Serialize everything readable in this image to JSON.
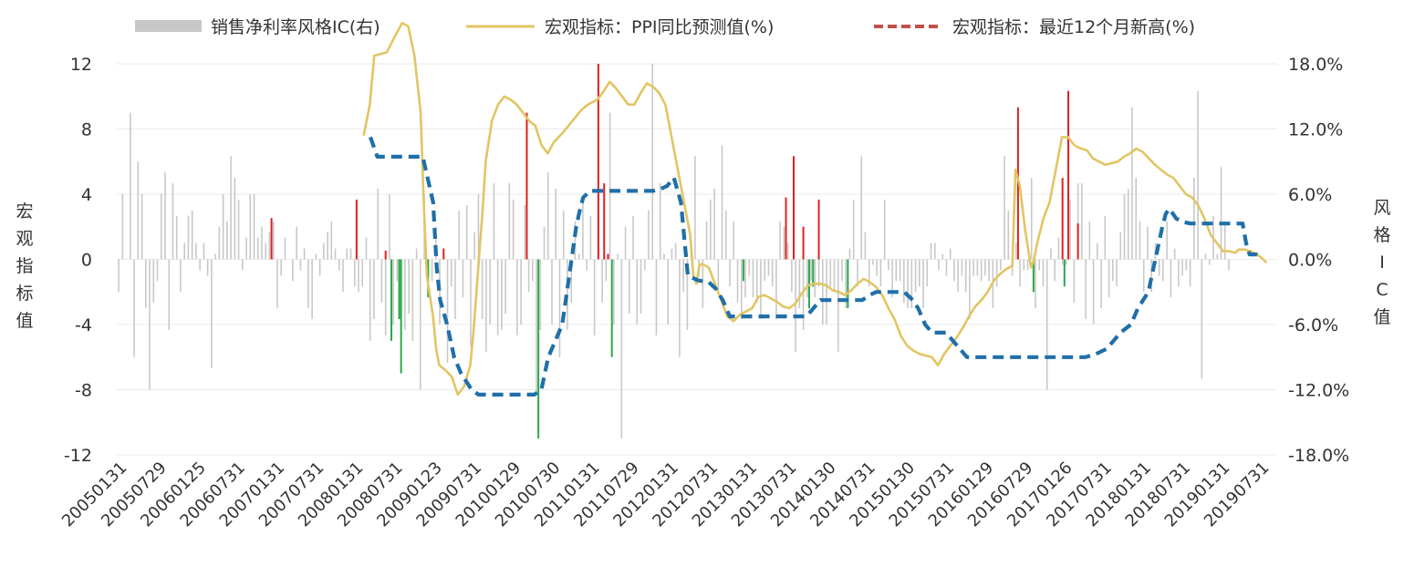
{
  "chart_data": {
    "type": "bar+line",
    "legend": {
      "placement": "top",
      "items": [
        {
          "label": "销售净利率风格IC(右)",
          "marker": "bar",
          "color": "#c8c8c8"
        },
        {
          "label": "宏观指标：PPI同比预测值(%)",
          "marker": "line",
          "color": "#e2c563"
        },
        {
          "label": "宏观指标：最近12个月新高(%)",
          "marker": "dash",
          "color": "#c0504d"
        }
      ]
    },
    "y_left": {
      "label": "宏观指标值",
      "min": -12,
      "max": 12,
      "ticks": [
        "12",
        "8",
        "4",
        "0",
        "-4",
        "-8",
        "-12"
      ]
    },
    "y_right": {
      "label": "风格IC值",
      "min": -18,
      "max": 18,
      "ticks": [
        "18.0%",
        "12.0%",
        "6.0%",
        "0.0%",
        "-6.0%",
        "-12.0%",
        "-18.0%"
      ]
    },
    "x_ticks": [
      "20050131",
      "20050729",
      "20060125",
      "20060731",
      "20070131",
      "20070731",
      "20080131",
      "20080731",
      "20090123",
      "20090731",
      "20100129",
      "20100730",
      "20110131",
      "20110729",
      "20120131",
      "20120731",
      "20130131",
      "20130731",
      "20140130",
      "20140731",
      "20150130",
      "20150731",
      "20160129",
      "20160729",
      "20170126",
      "20170731",
      "20180131",
      "20180731",
      "20190131",
      "20190731"
    ],
    "colors": {
      "bar_neutral": "#c8c8c8",
      "bar_positive": "#e02020",
      "bar_negative": "#2aa84a",
      "ppi_line": "#e2c563",
      "high_line": "#1f6fa8",
      "grid": "#ebebeb",
      "axis_text": "#333333"
    },
    "ic_values_pct": [
      -3.0,
      6.0,
      0,
      13.5,
      -9.0,
      9.0,
      6.0,
      -4.5,
      -12.0,
      -4.0,
      -2.0,
      6.0,
      8.0,
      -6.5,
      7.0,
      4.0,
      -3.0,
      1.5,
      4.0,
      4.5,
      1.5,
      -1.0,
      1.5,
      -1.5,
      -10.0,
      0.5,
      3.0,
      6.0,
      3.5,
      9.5,
      7.5,
      5.5,
      -1.0,
      2.0,
      6.0,
      6.0,
      2.0,
      3.0,
      1.5,
      2.5,
      3.5,
      -4.5,
      -1.5,
      2.0,
      0,
      -2.0,
      3.0,
      -1.0,
      1.0,
      -4.5,
      -5.5,
      0.5,
      -1.5,
      1.5,
      2.5,
      3.5,
      1.0,
      -1.0,
      -3.0,
      1.0,
      1.0,
      -2.5,
      -3.0,
      -2.5,
      2.0,
      -7.5,
      -5.5,
      6.5,
      -4.0,
      -7.0,
      6.0,
      -6.0,
      -2.0,
      -5.5,
      -6.5,
      -5.0,
      -7.5,
      1.0,
      -12.0,
      6.0,
      -0.5,
      -2.0,
      3.0,
      -6.0,
      0.5,
      -9.5,
      -2.5,
      -5.5,
      4.5,
      -3.5,
      5.0,
      -8.0,
      2.5,
      6.0,
      -5.5,
      -8.5,
      -6.0,
      7.0,
      -7.0,
      -6.5,
      -5.0,
      7.0,
      5.5,
      -7.0,
      -6.0,
      5.0,
      -3.0,
      -2.0,
      -12.5,
      -6.5,
      3.0,
      8.0,
      -6.0,
      6.5,
      -9.0,
      4.5,
      -6.5,
      -4.0,
      3.5,
      0.5,
      5.5,
      -1.0,
      4.0,
      -7.0,
      4.5,
      -4.0,
      -2.0,
      13.5,
      -6.0,
      0.5,
      -16.5,
      3.0,
      -5.0,
      4.0,
      -6.0,
      -5.0,
      -1.0,
      4.5,
      18.0,
      -7.0,
      7.0,
      0.5,
      -6.0,
      1.0,
      1.5,
      -9.0,
      -3.0,
      -6.5,
      1.5,
      9.5,
      -1.5,
      -4.5,
      3.5,
      5.5,
      6.5,
      -3.0,
      10.5,
      4.5,
      -2.5,
      3.5,
      -4.0,
      -5.5,
      -3.5,
      -1.5,
      -3.5,
      -4.0,
      -5.5,
      -2.0,
      -1.5,
      -2.5,
      -5.5,
      3.5,
      3.0,
      1.5,
      -3.0,
      -8.5,
      -4.5,
      -6.5,
      -3.5,
      -2.0,
      -3.5,
      -2.5,
      -6.0,
      -6.0,
      -2.5,
      -3.0,
      -8.5,
      -2.0,
      -4.5,
      1.0,
      5.5,
      -2.5,
      9.5,
      2.5,
      -2.5,
      -0.5,
      -1.5,
      -2.5,
      5.5,
      -1.0,
      -3.5,
      -2.0,
      -2.0,
      -4.0,
      -4.5,
      -4.5,
      -3.0,
      -2.5,
      -4.5,
      -2.5,
      1.5,
      1.5,
      -1.0,
      0.5,
      -1.5,
      1.0,
      -2.0,
      -3.0,
      -1.5,
      -3.0,
      -5.5,
      -1.5,
      -1.5,
      -2.0,
      -1.5,
      -2.0,
      -4.5,
      -2.5,
      -1.0,
      9.5,
      4.5,
      -1.5,
      1.5,
      -2.5,
      -1.0,
      -1.0,
      7.5,
      -4.5,
      -1.0,
      -2.5,
      -12.0,
      1.0,
      -2.0,
      2.0,
      -0.5,
      -0.5,
      5.5,
      -4.0,
      7.0,
      7.0,
      -5.5,
      3.5,
      -6.0,
      1.5,
      -4.5,
      4.0,
      -3.5,
      -2.0,
      -2.5,
      2.5,
      6.0,
      6.5,
      14.0,
      7.5,
      3.5,
      -3.0,
      3.0,
      -3.0,
      1.5,
      -1.5,
      -2.0,
      3.5,
      -3.5,
      1.0,
      -2.5,
      -1.5,
      -1.0,
      -2.5,
      7.5,
      15.5,
      -11.0,
      0.5,
      -0.5,
      4.0,
      0.5,
      8.5,
      3.5,
      -1.0
    ],
    "ppi_series": [
      [
        8.8,
        7.6
      ],
      [
        9.8,
        9.5
      ],
      [
        10.5,
        12.5
      ],
      [
        11.5,
        12.6
      ],
      [
        12.5,
        12.7
      ],
      [
        14.0,
        13.8
      ],
      [
        15.0,
        14.5
      ],
      [
        16.0,
        14.3
      ],
      [
        17.0,
        12.5
      ],
      [
        18.0,
        9.0
      ],
      [
        18.5,
        3.5
      ],
      [
        19.0,
        -1.0
      ],
      [
        20.0,
        -3.5
      ],
      [
        20.5,
        -5.5
      ],
      [
        21.0,
        -6.5
      ],
      [
        22.0,
        -6.8
      ],
      [
        23.0,
        -7.2
      ],
      [
        24.0,
        -8.3
      ],
      [
        25.0,
        -7.8
      ],
      [
        26.0,
        -6.5
      ],
      [
        26.5,
        -4.5
      ],
      [
        27.0,
        -2.0
      ],
      [
        27.5,
        0.5
      ],
      [
        28.0,
        3.0
      ],
      [
        28.5,
        6.0
      ],
      [
        29.5,
        8.5
      ],
      [
        30.5,
        9.5
      ],
      [
        31.5,
        10.0
      ],
      [
        32.5,
        9.8
      ],
      [
        33.5,
        9.5
      ],
      [
        34.5,
        9.0
      ],
      [
        35.5,
        8.5
      ],
      [
        36.5,
        8.2
      ],
      [
        37.5,
        7.0
      ],
      [
        38.5,
        6.5
      ],
      [
        39.5,
        7.2
      ],
      [
        41.0,
        7.8
      ],
      [
        42.5,
        8.5
      ],
      [
        44.0,
        9.2
      ],
      [
        45.0,
        9.5
      ],
      [
        46.5,
        9.8
      ],
      [
        47.5,
        10.3
      ],
      [
        48.5,
        10.9
      ],
      [
        49.5,
        10.5
      ],
      [
        50.5,
        10.0
      ],
      [
        51.5,
        9.5
      ],
      [
        52.5,
        9.5
      ],
      [
        53.5,
        10.2
      ],
      [
        54.5,
        10.8
      ],
      [
        55.5,
        10.6
      ],
      [
        56.5,
        10.2
      ],
      [
        57.5,
        9.5
      ],
      [
        58.5,
        7.5
      ],
      [
        59.5,
        5.5
      ],
      [
        60.5,
        3.5
      ],
      [
        61.5,
        1.5
      ],
      [
        62.0,
        -1.0
      ],
      [
        62.5,
        -1.5
      ],
      [
        63.0,
        -0.3
      ],
      [
        63.5,
        -0.3
      ],
      [
        64.5,
        -0.5
      ],
      [
        65.5,
        -1.5
      ],
      [
        66.5,
        -2.5
      ],
      [
        67.5,
        -3.5
      ],
      [
        68.5,
        -3.8
      ],
      [
        69.5,
        -3.4
      ],
      [
        70.5,
        -3.2
      ],
      [
        71.5,
        -3.0
      ],
      [
        72.5,
        -2.3
      ],
      [
        73.5,
        -2.2
      ],
      [
        74.5,
        -2.4
      ],
      [
        75.5,
        -2.6
      ],
      [
        76.5,
        -2.9
      ],
      [
        77.5,
        -3.0
      ],
      [
        78.5,
        -2.7
      ],
      [
        79.5,
        -2.1
      ],
      [
        80.5,
        -1.6
      ],
      [
        81.5,
        -1.5
      ],
      [
        82.5,
        -1.5
      ],
      [
        83.5,
        -1.6
      ],
      [
        84.5,
        -1.9
      ],
      [
        85.5,
        -2.0
      ],
      [
        86.5,
        -2.2
      ],
      [
        87.5,
        -1.9
      ],
      [
        88.5,
        -1.5
      ],
      [
        89.5,
        -1.2
      ],
      [
        90.5,
        -1.4
      ],
      [
        91.5,
        -1.7
      ],
      [
        92.5,
        -2.2
      ],
      [
        93.5,
        -3.0
      ],
      [
        94.5,
        -3.7
      ],
      [
        95.5,
        -4.7
      ],
      [
        96.5,
        -5.3
      ],
      [
        97.5,
        -5.6
      ],
      [
        98.5,
        -5.8
      ],
      [
        99.5,
        -5.9
      ],
      [
        100.5,
        -6.0
      ],
      [
        101.5,
        -6.5
      ],
      [
        102.5,
        -5.8
      ],
      [
        103.5,
        -5.3
      ],
      [
        104.5,
        -4.8
      ],
      [
        105.5,
        -4.2
      ],
      [
        106.5,
        -3.5
      ],
      [
        107.5,
        -2.9
      ],
      [
        108.5,
        -2.5
      ],
      [
        109.5,
        -2.0
      ],
      [
        110.5,
        -1.3
      ],
      [
        111.5,
        -0.9
      ],
      [
        112.5,
        -0.6
      ],
      [
        113.5,
        -0.4
      ],
      [
        114.0,
        5.5
      ],
      [
        114.7,
        4.5
      ],
      [
        115.5,
        2.0
      ],
      [
        116.5,
        -0.5
      ],
      [
        117.0,
        0.0
      ],
      [
        117.5,
        1.0
      ],
      [
        118.5,
        2.5
      ],
      [
        119.5,
        3.5
      ],
      [
        120.5,
        5.5
      ],
      [
        121.5,
        7.5
      ],
      [
        122.5,
        7.5
      ],
      [
        123.5,
        7.0
      ],
      [
        124.5,
        6.8
      ],
      [
        125.5,
        6.7
      ],
      [
        126.5,
        6.2
      ],
      [
        127.5,
        6.0
      ],
      [
        128.5,
        5.8
      ],
      [
        129.5,
        5.9
      ],
      [
        130.5,
        6.0
      ],
      [
        131.5,
        6.3
      ],
      [
        132.5,
        6.5
      ],
      [
        133.5,
        6.8
      ],
      [
        134.5,
        6.6
      ],
      [
        135.5,
        6.2
      ],
      [
        136.5,
        5.8
      ],
      [
        137.5,
        5.5
      ],
      [
        138.5,
        5.2
      ],
      [
        139.5,
        5.0
      ],
      [
        140.5,
        4.5
      ],
      [
        141.5,
        4.0
      ],
      [
        142.5,
        3.8
      ],
      [
        143.5,
        3.3
      ],
      [
        144.5,
        2.5
      ],
      [
        145.5,
        1.5
      ],
      [
        146.5,
        1.0
      ],
      [
        147.5,
        0.5
      ],
      [
        148.5,
        0.5
      ],
      [
        149.5,
        0.4
      ],
      [
        150.0,
        0.6
      ],
      [
        151.0,
        0.6
      ],
      [
        152.0,
        0.5
      ],
      [
        153.0,
        0.3
      ],
      [
        154.0,
        0.0
      ],
      [
        154.5,
        -0.2
      ]
    ],
    "high_series": [
      [
        9.5,
        7.5
      ],
      [
        10.5,
        6.3
      ],
      [
        12.0,
        6.3
      ],
      [
        17.0,
        6.3
      ],
      [
        18.5,
        3.5
      ],
      [
        19.0,
        -0.5
      ],
      [
        19.5,
        -2.5
      ],
      [
        20.5,
        -4.0
      ],
      [
        21.5,
        -6.0
      ],
      [
        22.5,
        -7.0
      ],
      [
        24.0,
        -8.0
      ],
      [
        25.0,
        -8.3
      ],
      [
        28.0,
        -8.3
      ],
      [
        33.0,
        -8.3
      ],
      [
        34.0,
        -8.0
      ],
      [
        35.0,
        -6.0
      ],
      [
        36.0,
        -5.0
      ],
      [
        37.0,
        -4.0
      ],
      [
        38.0,
        -1.0
      ],
      [
        39.0,
        2.0
      ],
      [
        39.5,
        3.0
      ],
      [
        40.0,
        3.8
      ],
      [
        41.0,
        4.2
      ],
      [
        48.0,
        4.2
      ],
      [
        50.0,
        4.2
      ],
      [
        51.0,
        4.3
      ],
      [
        52.0,
        4.5
      ],
      [
        53.0,
        5.0
      ],
      [
        54.0,
        3.5
      ],
      [
        55.0,
        -1.0
      ],
      [
        56.5,
        -1.3
      ],
      [
        58.0,
        -1.4
      ],
      [
        59.0,
        -1.8
      ],
      [
        60.0,
        -2.5
      ],
      [
        61.0,
        -3.5
      ],
      [
        65.0,
        -3.5
      ],
      [
        70.0,
        -3.5
      ],
      [
        72.0,
        -3.5
      ],
      [
        73.0,
        -3.0
      ],
      [
        74.0,
        -2.5
      ],
      [
        77.0,
        -2.5
      ],
      [
        80.0,
        -2.5
      ],
      [
        81.0,
        -2.2
      ],
      [
        82.0,
        -2.0
      ],
      [
        86.0,
        -2.0
      ],
      [
        87.0,
        -2.4
      ],
      [
        88.0,
        -3.0
      ],
      [
        89.0,
        -4.0
      ],
      [
        90.0,
        -4.5
      ],
      [
        92.0,
        -4.5
      ],
      [
        93.0,
        -5.0
      ],
      [
        94.0,
        -5.5
      ],
      [
        95.0,
        -6.0
      ],
      [
        96.0,
        -6.0
      ],
      [
        102.0,
        -6.0
      ],
      [
        108.0,
        -6.0
      ],
      [
        112.0,
        -6.0
      ],
      [
        113.5,
        -5.8
      ],
      [
        115.0,
        -5.5
      ],
      [
        116.0,
        -5.0
      ],
      [
        117.0,
        -4.5
      ],
      [
        118.5,
        -4.0
      ],
      [
        119.5,
        -3.0
      ],
      [
        121.0,
        -2.0
      ],
      [
        121.5,
        -1.0
      ],
      [
        122.0,
        0.0
      ],
      [
        122.5,
        1.0
      ],
      [
        123.0,
        2.0
      ],
      [
        123.5,
        2.8
      ],
      [
        124.0,
        3.1
      ],
      [
        124.5,
        2.8
      ],
      [
        125.0,
        2.5
      ],
      [
        126.0,
        2.3
      ],
      [
        127.0,
        2.2
      ],
      [
        130.0,
        2.2
      ],
      [
        134.5,
        2.2
      ],
      [
        135.0,
        1.0
      ],
      [
        135.5,
        0.3
      ],
      [
        136.5,
        0.3
      ],
      [
        137.5,
        0.2
      ]
    ],
    "positive_spikes": [
      {
        "i": 39.5,
        "ic": 3.8
      },
      {
        "i": 61.5,
        "ic": 5.5
      },
      {
        "i": 69.0,
        "ic": 0.8
      },
      {
        "i": 84.0,
        "ic": 1.0
      },
      {
        "i": 105.5,
        "ic": 13.5
      },
      {
        "i": 124.0,
        "ic": 18.0
      },
      {
        "i": 125.5,
        "ic": 7.0
      },
      {
        "i": 126.5,
        "ic": 0.5
      },
      {
        "i": 172.5,
        "ic": 5.7
      },
      {
        "i": 174.5,
        "ic": 9.5
      },
      {
        "i": 177.0,
        "ic": 3.0
      },
      {
        "i": 181.0,
        "ic": 5.5
      },
      {
        "i": 232.5,
        "ic": 14.0
      },
      {
        "i": 244.0,
        "ic": 7.5
      },
      {
        "i": 245.5,
        "ic": 15.5
      },
      {
        "i": 248.0,
        "ic": 3.3
      }
    ],
    "negative_spikes": [
      {
        "i": 70.5,
        "ic": -7.5
      },
      {
        "i": 72.5,
        "ic": -5.5
      },
      {
        "i": 73.0,
        "ic": -10.5
      },
      {
        "i": 80.0,
        "ic": -3.5
      },
      {
        "i": 108.5,
        "ic": -16.5
      },
      {
        "i": 127.5,
        "ic": -9.0
      },
      {
        "i": 161.5,
        "ic": -2.0
      },
      {
        "i": 178.5,
        "ic": -4.5
      },
      {
        "i": 179.5,
        "ic": -2.5
      },
      {
        "i": 188.5,
        "ic": -4.5
      },
      {
        "i": 236.5,
        "ic": -3.0
      },
      {
        "i": 244.5,
        "ic": -2.5
      }
    ]
  }
}
